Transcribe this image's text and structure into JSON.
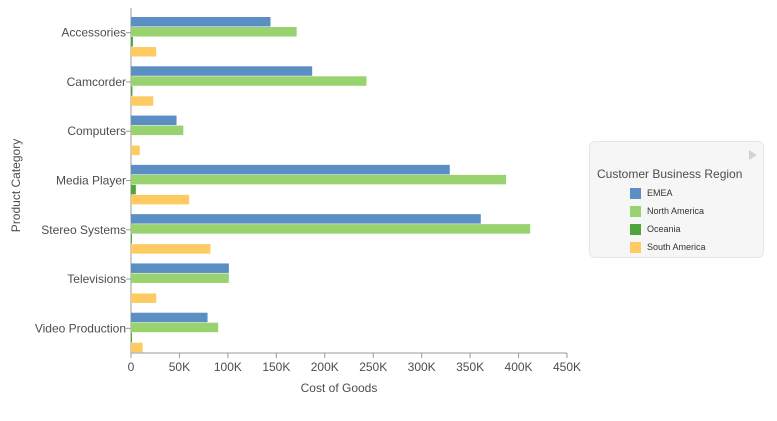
{
  "chart_data": {
    "type": "bar",
    "orientation": "horizontal",
    "categories": [
      "Accessories",
      "Camcorder",
      "Computers",
      "Media Player",
      "Stereo Systems",
      "Televisions",
      "Video Production"
    ],
    "series": [
      {
        "name": "EMEA",
        "color": "#5b8fc4",
        "values": [
          144000,
          187000,
          47000,
          329000,
          361000,
          101000,
          79000
        ]
      },
      {
        "name": "North America",
        "color": "#99d36f",
        "values": [
          171000,
          243000,
          54000,
          387000,
          412000,
          101000,
          90000
        ]
      },
      {
        "name": "Oceania",
        "color": "#4ea53a",
        "values": [
          2000,
          1500,
          0,
          5000,
          1000,
          0,
          1000
        ]
      },
      {
        "name": "South America",
        "color": "#fdcb62",
        "values": [
          26000,
          23000,
          9000,
          60000,
          82000,
          26000,
          12000
        ]
      }
    ],
    "xlabel": "Cost of Goods",
    "ylabel": "Product Category",
    "xlim": [
      0,
      450000
    ],
    "xticks": [
      0,
      50000,
      100000,
      150000,
      200000,
      250000,
      300000,
      350000,
      400000,
      450000
    ],
    "xtick_labels": [
      "0",
      "50K",
      "100K",
      "150K",
      "200K",
      "250K",
      "300K",
      "350K",
      "400K",
      "450K"
    ],
    "grid": false,
    "legend": {
      "title": "Customer Business Region",
      "placement": "right"
    }
  }
}
